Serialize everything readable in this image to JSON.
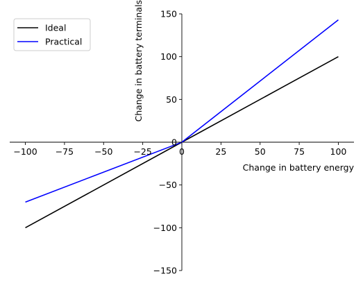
{
  "chart_data": {
    "type": "line",
    "title": "",
    "xlabel": "Change in battery energy",
    "ylabel": "Change in battery terminals",
    "xlim": [
      -110,
      110
    ],
    "ylim": [
      -150,
      150
    ],
    "xticks": [
      -100,
      -75,
      -50,
      -25,
      0,
      25,
      50,
      75,
      100
    ],
    "yticks": [
      -150,
      -100,
      -50,
      0,
      50,
      100,
      150
    ],
    "xtick_labels": [
      "−100",
      "−75",
      "−50",
      "−25",
      "0",
      "25",
      "50",
      "75",
      "100"
    ],
    "ytick_labels": [
      "−150",
      "−100",
      "−50",
      "0",
      "50",
      "100",
      "150"
    ],
    "grid": false,
    "legend": "top-left",
    "series": [
      {
        "name": "Ideal",
        "color": "#000000",
        "x": [
          -100,
          0,
          100
        ],
        "y": [
          -100,
          0,
          100
        ]
      },
      {
        "name": "Practical",
        "color": "#0000ff",
        "x": [
          -100,
          0,
          100
        ],
        "y": [
          -70,
          0,
          143
        ]
      }
    ]
  }
}
